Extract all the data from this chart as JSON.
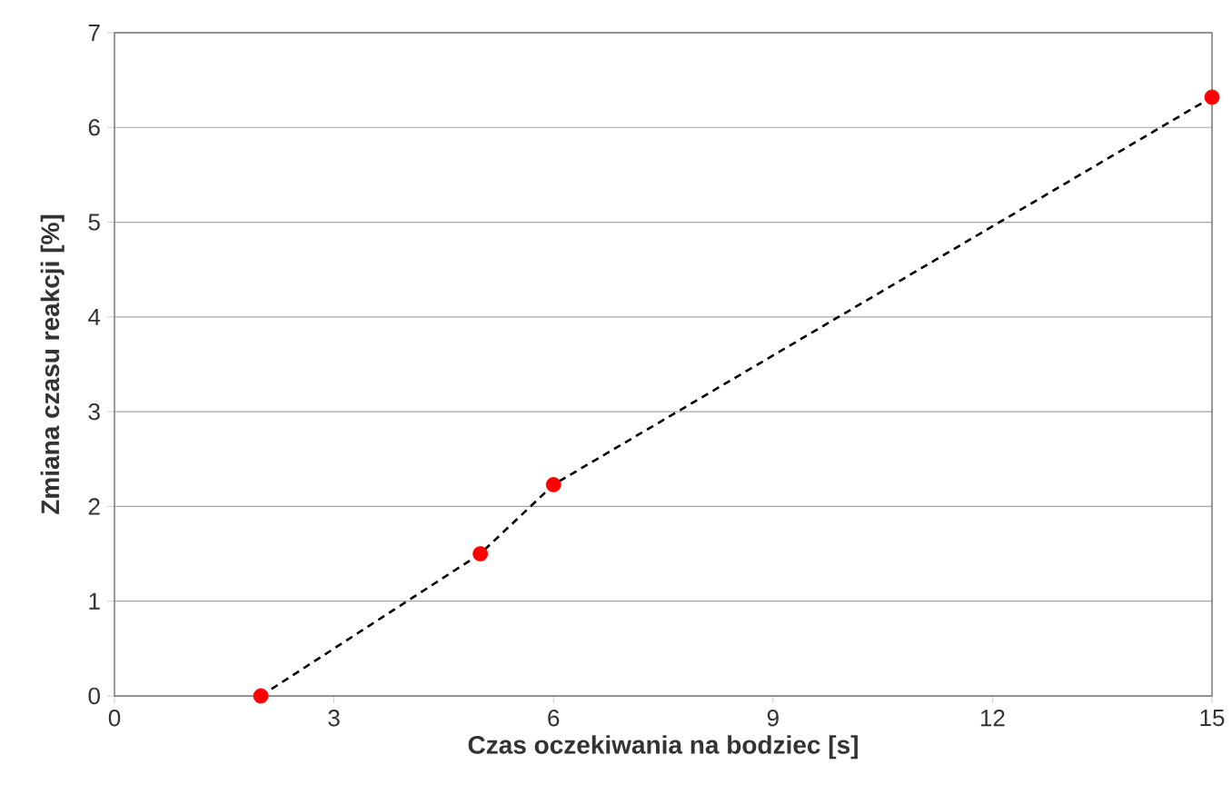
{
  "chart_data": {
    "type": "line",
    "xlabel": "Czas oczekiwania na bodziec [s]",
    "ylabel": "Zmiana czasu reakcji [%]",
    "xlim": [
      0,
      15
    ],
    "xticks": [
      0,
      3,
      6,
      9,
      12,
      15
    ],
    "ylim": [
      0,
      7
    ],
    "yticks": [
      0,
      1,
      2,
      3,
      4,
      5,
      6,
      7
    ],
    "grid": "y",
    "series": [
      {
        "color": "#000000",
        "line_style": "dashed",
        "marker": "none",
        "x": [
          2,
          5,
          6,
          15
        ],
        "values": [
          0,
          1.5,
          2.23,
          6.32
        ]
      },
      {
        "type": "scatter",
        "color": "#ff0000",
        "marker": "circle",
        "x": [
          2,
          5,
          6,
          15
        ],
        "values": [
          0,
          1.5,
          2.23,
          6.32
        ]
      }
    ]
  }
}
